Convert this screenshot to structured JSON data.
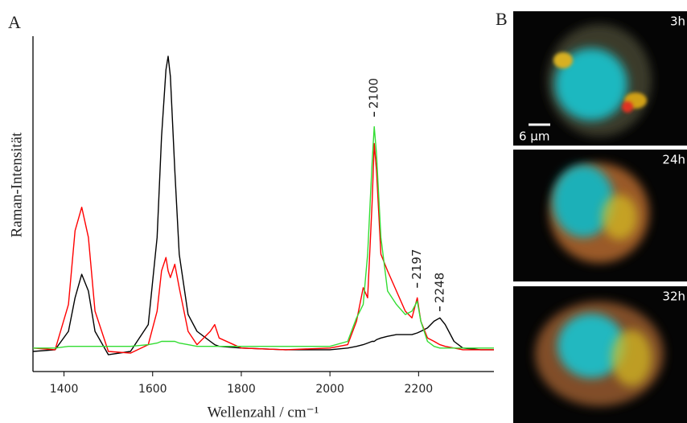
{
  "panel_labels": [
    "A",
    "B"
  ],
  "chart_data": {
    "type": "line",
    "x_label": "Wellenzahl / cm⁻¹",
    "y_label": "Raman-Intensität",
    "x": [
      1330,
      1380,
      1410,
      1425,
      1440,
      1455,
      1470,
      1500,
      1550,
      1590,
      1610,
      1620,
      1630,
      1635,
      1640,
      1650,
      1660,
      1680,
      1700,
      1730,
      1740,
      1750,
      1800,
      1900,
      2000,
      2040,
      2060,
      2075,
      2085,
      2095,
      2100,
      2105,
      2115,
      2130,
      2150,
      2170,
      2185,
      2197,
      2205,
      2220,
      2235,
      2248,
      2260,
      2280,
      2300,
      2340,
      2370
    ],
    "series": [
      {
        "color": "#000000",
        "values": [
          6,
          6.5,
          12,
          22,
          29,
          24,
          12,
          5,
          6,
          14,
          40,
          70,
          90,
          94,
          88,
          60,
          35,
          17,
          12,
          9,
          8,
          7.5,
          7,
          6.5,
          6.5,
          7,
          7.5,
          8,
          8.5,
          9,
          9,
          9.5,
          10,
          10.5,
          11,
          11,
          11,
          11.5,
          12,
          13,
          15,
          16,
          14,
          9,
          7,
          6.5,
          6.5
        ]
      },
      {
        "color": "#ff0000",
        "values": [
          7,
          6.5,
          20,
          42,
          49,
          40,
          18,
          6,
          5.5,
          8,
          18,
          30,
          34,
          30,
          28,
          32,
          25,
          12,
          8,
          12,
          14,
          10,
          7,
          6.5,
          7,
          8,
          15,
          25,
          22,
          50,
          68,
          60,
          35,
          30,
          24,
          18,
          16,
          22,
          15,
          10,
          9,
          8,
          7.5,
          7,
          6.5,
          6.5,
          6.5
        ]
      },
      {
        "color": "#33dd33",
        "values": [
          7,
          7,
          7.5,
          7.5,
          7.5,
          7.5,
          7.5,
          7.5,
          7.5,
          8,
          8.5,
          9,
          9,
          9,
          9,
          9,
          8.5,
          8,
          7.5,
          7.5,
          7.5,
          7.5,
          7.5,
          7.5,
          7.5,
          9,
          16,
          20,
          35,
          62,
          73,
          65,
          40,
          24,
          20,
          17,
          18,
          21,
          15,
          9,
          7.5,
          7,
          7,
          7,
          7,
          7,
          7
        ]
      }
    ],
    "annotations": [
      {
        "text": "2100",
        "x": 2100,
        "y": 76
      },
      {
        "text": "2197",
        "x": 2197,
        "y": 25
      },
      {
        "text": "2248",
        "x": 2248,
        "y": 18
      }
    ],
    "xlim": [
      1330,
      2370
    ],
    "ylim": [
      0,
      100
    ],
    "xticks": [
      1400,
      1600,
      1800,
      2000,
      2200
    ],
    "grid": false
  },
  "panel_b": {
    "images": [
      {
        "label": "3h"
      },
      {
        "label": "24h"
      },
      {
        "label": "32h"
      }
    ],
    "scale_bar": "6 µm"
  }
}
